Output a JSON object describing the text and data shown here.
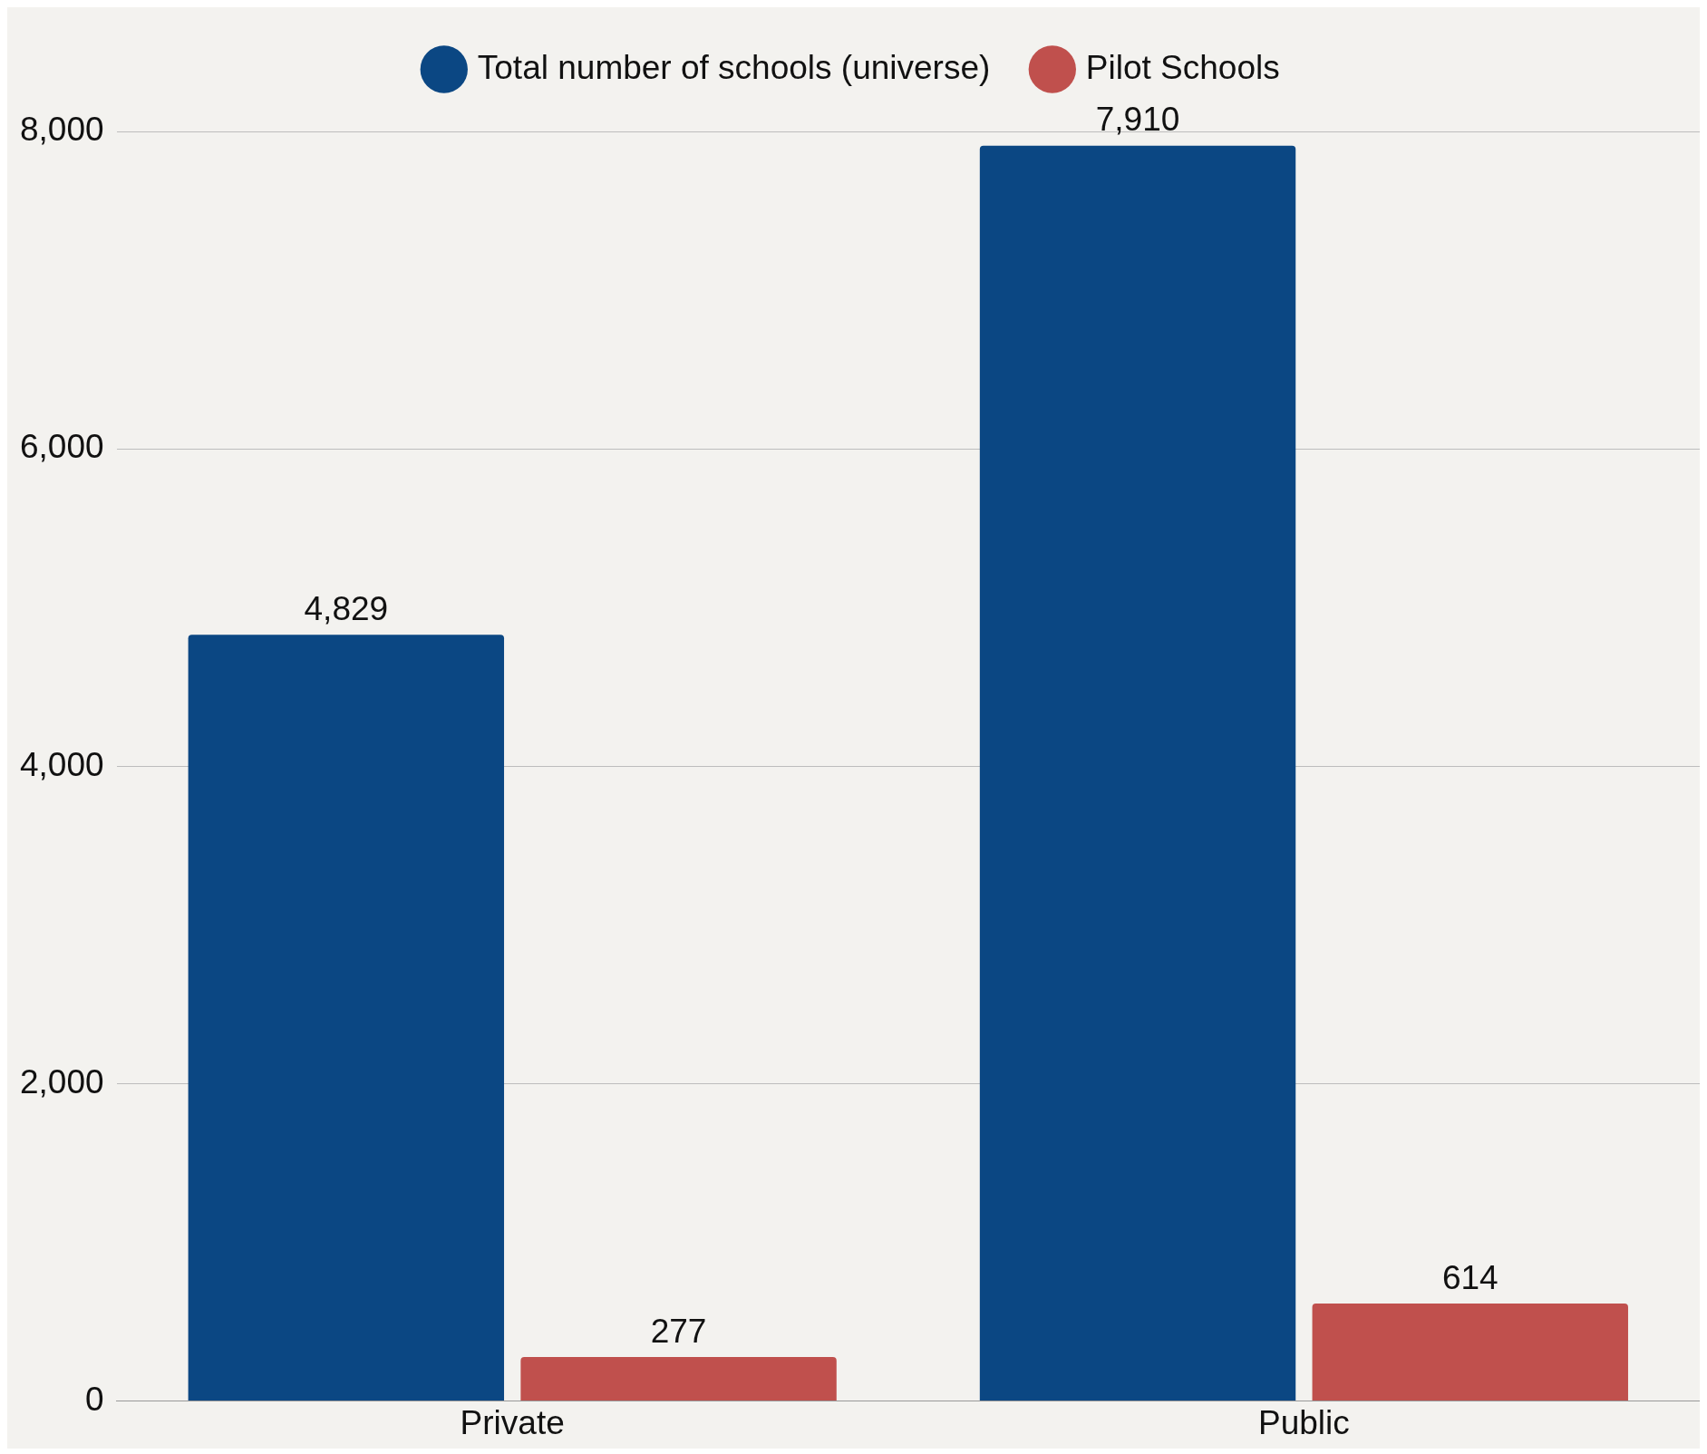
{
  "chart_data": {
    "type": "bar",
    "categories": [
      "Private",
      "Public"
    ],
    "series": [
      {
        "name": "Total number of schools (universe)",
        "color": "#0b4783",
        "values": [
          4829,
          7910
        ],
        "value_labels": [
          "4,829",
          "7,910"
        ]
      },
      {
        "name": "Pilot Schools",
        "color": "#c0504d",
        "values": [
          277,
          614
        ],
        "value_labels": [
          "277",
          "614"
        ]
      }
    ],
    "ylim": [
      0,
      8000
    ],
    "yticks": [
      0,
      {
        "value": 2000,
        "label": "2,000"
      },
      {
        "value": 4000,
        "label": "4,000"
      },
      {
        "value": 6000,
        "label": "6,000"
      },
      {
        "value": 8000,
        "label": "8,000"
      }
    ],
    "grid": "y",
    "legend": "top"
  }
}
